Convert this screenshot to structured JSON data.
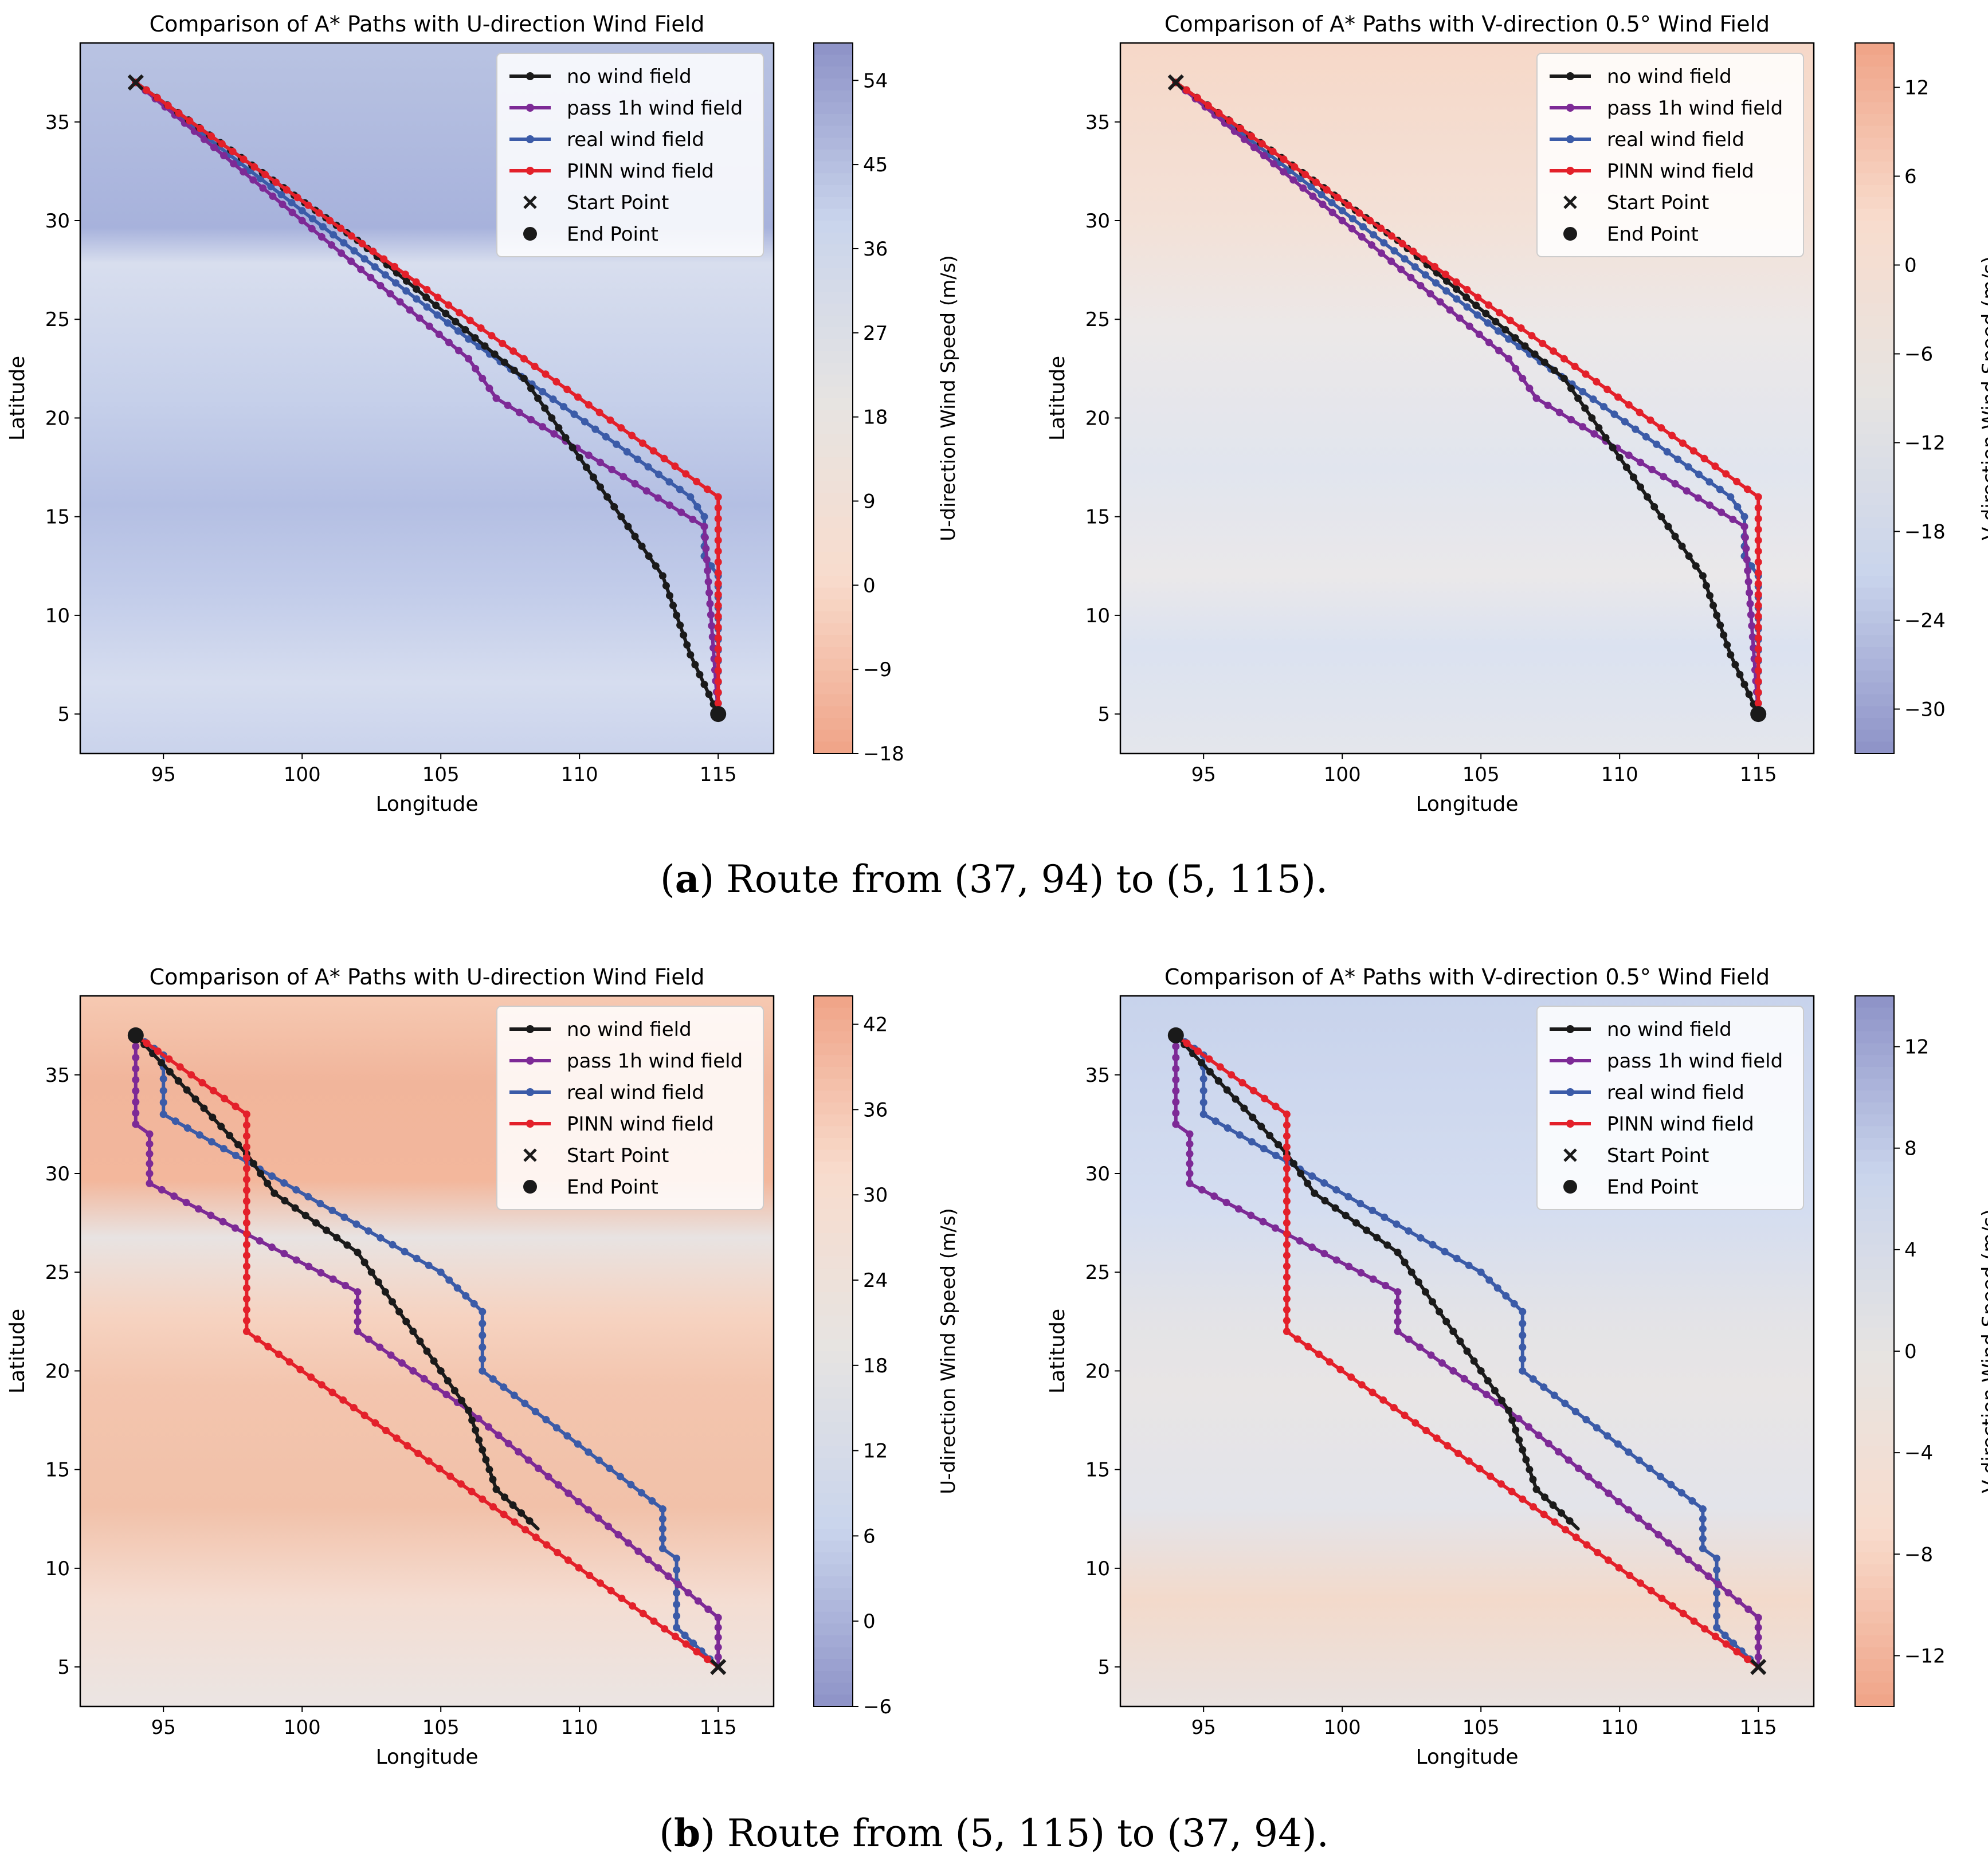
{
  "colors": {
    "no_wind": "#1a1a1a",
    "pass_1h": "#7d2a96",
    "real": "#3b5ba8",
    "pinn": "#e3202a",
    "blue_strong": "#8d92c7",
    "blue_light": "#c9d4ec",
    "neutral": "#e6e4e2",
    "orange_light": "#f8dccd",
    "orange_strong": "#f0a387"
  },
  "captions": {
    "a": {
      "letter": "a",
      "text": "Route from (37, 94) to (5, 115)."
    },
    "b": {
      "letter": "b",
      "text": "Route from (5, 115) to (37, 94)."
    }
  },
  "chart_data": [
    {
      "id": "a-left",
      "type": "line",
      "title": "Comparison of A* Paths with U-direction Wind Field",
      "xlabel": "Longitude",
      "ylabel": "Latitude",
      "xlim": [
        92,
        117
      ],
      "ylim": [
        3,
        39
      ],
      "xticks": [
        95,
        100,
        105,
        110,
        115
      ],
      "yticks": [
        5,
        10,
        15,
        20,
        25,
        30,
        35
      ],
      "legend": [
        "no wind field",
        "pass 1h wind field",
        "real wind field",
        "PINN wind field",
        "Start Point",
        "End Point"
      ],
      "legend_position": "upper right",
      "start": [
        94,
        37
      ],
      "end": [
        115,
        5
      ],
      "colorbar": {
        "label": "U-direction Wind Speed (m/s)",
        "min": -18,
        "max": 58,
        "ticks": [
          54,
          45,
          36,
          27,
          18,
          9,
          0,
          -9,
          -18
        ],
        "colormap": "orange-to-blue"
      },
      "series": [
        {
          "name": "no wind field",
          "points": [
            [
              94,
              37
            ],
            [
              102,
              29
            ],
            [
              108,
              22
            ],
            [
              108.5,
              21
            ],
            [
              109,
              20
            ],
            [
              110,
              18
            ],
            [
              111,
              16
            ],
            [
              112,
              14
            ],
            [
              113,
              12
            ],
            [
              113.5,
              10
            ],
            [
              114,
              8
            ],
            [
              114.5,
              6.5
            ],
            [
              115,
              5
            ]
          ]
        },
        {
          "name": "pass 1h wind field",
          "points": [
            [
              94,
              37
            ],
            [
              106,
              23
            ],
            [
              107,
              21
            ],
            [
              114.5,
              14.5
            ],
            [
              115,
              5
            ]
          ]
        },
        {
          "name": "real wind field",
          "points": [
            [
              94,
              37
            ],
            [
              106,
              24
            ],
            [
              114,
              16
            ],
            [
              114.5,
              15
            ],
            [
              114.5,
              13
            ],
            [
              115,
              12
            ],
            [
              115,
              5
            ]
          ]
        },
        {
          "name": "PINN wind field",
          "points": [
            [
              94,
              37
            ],
            [
              115,
              16
            ],
            [
              115,
              5
            ]
          ]
        }
      ]
    },
    {
      "id": "a-right",
      "type": "line",
      "title": "Comparison of A* Paths with V-direction 0.5° Wind Field",
      "xlabel": "Longitude",
      "ylabel": "Latitude",
      "xlim": [
        92,
        117
      ],
      "ylim": [
        3,
        39
      ],
      "xticks": [
        95,
        100,
        105,
        110,
        115
      ],
      "yticks": [
        5,
        10,
        15,
        20,
        25,
        30,
        35
      ],
      "legend": [
        "no wind field",
        "pass 1h wind field",
        "real wind field",
        "PINN wind field",
        "Start Point",
        "End Point"
      ],
      "legend_position": "upper right",
      "start": [
        94,
        37
      ],
      "end": [
        115,
        5
      ],
      "colorbar": {
        "label": "V-direction Wind Speed (m/s)",
        "min": -33,
        "max": 15,
        "ticks": [
          12,
          6,
          0,
          -6,
          -12,
          -18,
          -24,
          -30
        ],
        "colormap": "blue-to-orange"
      },
      "series": [
        {
          "name": "no wind field",
          "points": [
            [
              94,
              37
            ],
            [
              102,
              29
            ],
            [
              108,
              22
            ],
            [
              108.5,
              21
            ],
            [
              109,
              20
            ],
            [
              110,
              18
            ],
            [
              111,
              16
            ],
            [
              112,
              14
            ],
            [
              113,
              12
            ],
            [
              113.5,
              10
            ],
            [
              114,
              8
            ],
            [
              114.5,
              6.5
            ],
            [
              115,
              5
            ]
          ]
        },
        {
          "name": "pass 1h wind field",
          "points": [
            [
              94,
              37
            ],
            [
              106,
              23
            ],
            [
              107,
              21
            ],
            [
              114.5,
              14.5
            ],
            [
              115,
              5
            ]
          ]
        },
        {
          "name": "real wind field",
          "points": [
            [
              94,
              37
            ],
            [
              106,
              24
            ],
            [
              114,
              16
            ],
            [
              114.5,
              15
            ],
            [
              114.5,
              13
            ],
            [
              115,
              12
            ],
            [
              115,
              5
            ]
          ]
        },
        {
          "name": "PINN wind field",
          "points": [
            [
              94,
              37
            ],
            [
              115,
              16
            ],
            [
              115,
              5
            ]
          ]
        }
      ]
    },
    {
      "id": "b-left",
      "type": "line",
      "title": "Comparison of A* Paths with U-direction Wind Field",
      "xlabel": "Longitude",
      "ylabel": "Latitude",
      "xlim": [
        92,
        117
      ],
      "ylim": [
        3,
        39
      ],
      "xticks": [
        95,
        100,
        105,
        110,
        115
      ],
      "yticks": [
        5,
        10,
        15,
        20,
        25,
        30,
        35
      ],
      "legend": [
        "no wind field",
        "pass 1h wind field",
        "real wind field",
        "PINN wind field",
        "Start Point",
        "End Point"
      ],
      "legend_position": "upper right",
      "start": [
        115,
        5
      ],
      "end": [
        94,
        37
      ],
      "colorbar": {
        "label": "U-direction Wind Speed (m/s)",
        "min": -6,
        "max": 44,
        "ticks": [
          42,
          36,
          30,
          24,
          18,
          12,
          6,
          0,
          -6
        ],
        "colormap": "blue-to-orange"
      },
      "series": [
        {
          "name": "no wind field",
          "points": [
            [
              94,
              37
            ],
            [
              98,
              31
            ],
            [
              99,
              29
            ],
            [
              102,
              26
            ],
            [
              103,
              24
            ],
            [
              106,
              18
            ],
            [
              106.5,
              16
            ],
            [
              107,
              14
            ],
            [
              108.5,
              12
            ]
          ]
        },
        {
          "name": "pass 1h wind field",
          "points": [
            [
              94,
              37
            ],
            [
              94,
              32.5
            ],
            [
              94.5,
              32
            ],
            [
              94.5,
              29.5
            ],
            [
              102,
              24
            ],
            [
              102,
              22
            ],
            [
              106,
              18
            ],
            [
              115,
              7.5
            ],
            [
              115,
              5
            ]
          ]
        },
        {
          "name": "real wind field",
          "points": [
            [
              94,
              37
            ],
            [
              95,
              36
            ],
            [
              95,
              33
            ],
            [
              105,
              25
            ],
            [
              106.5,
              23
            ],
            [
              106.5,
              20
            ],
            [
              113,
              13
            ],
            [
              113,
              11
            ],
            [
              113.5,
              10.5
            ],
            [
              113.5,
              7
            ],
            [
              115,
              5
            ]
          ]
        },
        {
          "name": "PINN wind field",
          "points": [
            [
              94,
              37
            ],
            [
              98,
              33
            ],
            [
              98,
              22
            ],
            [
              115,
              5
            ]
          ]
        }
      ]
    },
    {
      "id": "b-right",
      "type": "line",
      "title": "Comparison of A* Paths with V-direction 0.5° Wind Field",
      "xlabel": "Longitude",
      "ylabel": "Latitude",
      "xlim": [
        92,
        117
      ],
      "ylim": [
        3,
        39
      ],
      "xticks": [
        95,
        100,
        105,
        110,
        115
      ],
      "yticks": [
        5,
        10,
        15,
        20,
        25,
        30,
        35
      ],
      "legend": [
        "no wind field",
        "pass 1h wind field",
        "real wind field",
        "PINN wind field",
        "Start Point",
        "End Point"
      ],
      "legend_position": "upper right",
      "start": [
        115,
        5
      ],
      "end": [
        94,
        37
      ],
      "colorbar": {
        "label": "V-direction Wind Speed (m/s)",
        "min": -14,
        "max": 14,
        "ticks": [
          12,
          8,
          4,
          0,
          -4,
          -8,
          -12
        ],
        "colormap": "orange-to-blue"
      },
      "series": [
        {
          "name": "no wind field",
          "points": [
            [
              94,
              37
            ],
            [
              98,
              31
            ],
            [
              99,
              29
            ],
            [
              102,
              26
            ],
            [
              103,
              24
            ],
            [
              106,
              18
            ],
            [
              106.5,
              16
            ],
            [
              107,
              14
            ],
            [
              108.5,
              12
            ]
          ]
        },
        {
          "name": "pass 1h wind field",
          "points": [
            [
              94,
              37
            ],
            [
              94,
              32.5
            ],
            [
              94.5,
              32
            ],
            [
              94.5,
              29.5
            ],
            [
              102,
              24
            ],
            [
              102,
              22
            ],
            [
              106,
              18
            ],
            [
              115,
              7.5
            ],
            [
              115,
              5
            ]
          ]
        },
        {
          "name": "real wind field",
          "points": [
            [
              94,
              37
            ],
            [
              95,
              36
            ],
            [
              95,
              33
            ],
            [
              105,
              25
            ],
            [
              106.5,
              23
            ],
            [
              106.5,
              20
            ],
            [
              113,
              13
            ],
            [
              113,
              11
            ],
            [
              113.5,
              10.5
            ],
            [
              113.5,
              7
            ],
            [
              115,
              5
            ]
          ]
        },
        {
          "name": "PINN wind field",
          "points": [
            [
              94,
              37
            ],
            [
              98,
              33
            ],
            [
              98,
              22
            ],
            [
              115,
              5
            ]
          ]
        }
      ]
    }
  ]
}
